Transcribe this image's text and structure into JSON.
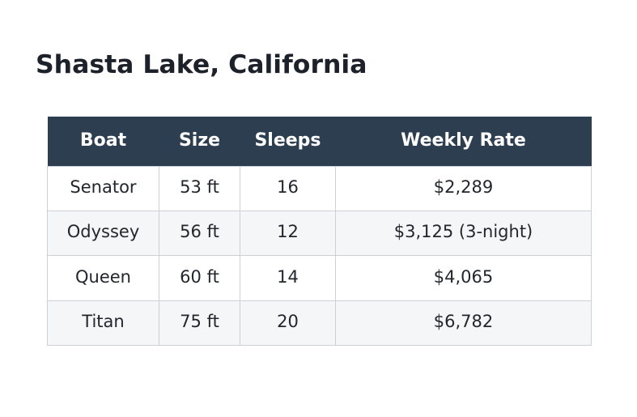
{
  "page": {
    "title": "Shasta Lake, California",
    "background_color": "#ffffff"
  },
  "theme": {
    "header_background": "#2c3e50",
    "header_text_color": "#ffffff",
    "body_text_color": "#22262d",
    "alt_row_background": "#f5f6f8",
    "border_color": "#ccd1d7"
  },
  "table": {
    "columns": [
      "Boat",
      "Size",
      "Sleeps",
      "Weekly Rate"
    ],
    "rows": [
      [
        "Senator",
        "53 ft",
        "16",
        "$2,289"
      ],
      [
        "Odyssey",
        "56 ft",
        "12",
        "$3,125 (3-night)"
      ],
      [
        "Queen",
        "60 ft",
        "14",
        "$4,065"
      ],
      [
        "Titan",
        "75 ft",
        "20",
        "$6,782"
      ]
    ]
  }
}
